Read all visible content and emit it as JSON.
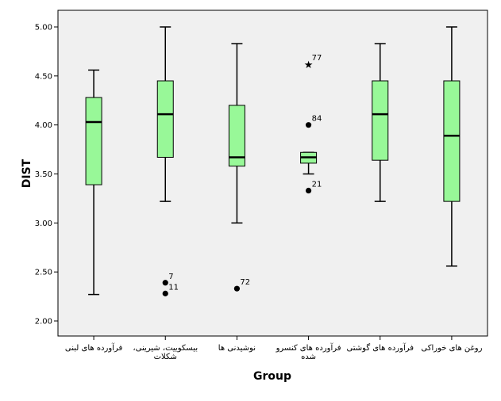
{
  "chart_data": {
    "type": "boxplot",
    "xlabel": "Group",
    "ylabel": "DIST",
    "ylim": [
      1.9,
      5.2
    ],
    "yticks": [
      2.0,
      2.5,
      3.0,
      3.5,
      4.0,
      4.5,
      5.0
    ],
    "ytick_labels": [
      "2.00",
      "2.50",
      "3.00",
      "3.50",
      "4.00",
      "4.50",
      "5.00"
    ],
    "grid": false,
    "colors": {
      "box_fill": "#98f898",
      "plot_bg": "#f0f0f0",
      "stroke": "#000000"
    },
    "categories": [
      {
        "label": [
          "فرآورده های لبنی"
        ],
        "min": 2.27,
        "q1": 3.39,
        "median": 4.03,
        "q3": 4.28,
        "max": 4.56,
        "outliers": []
      },
      {
        "label": [
          "بیسکوییت، شیرینی،",
          "شکلات"
        ],
        "min": 3.22,
        "q1": 3.67,
        "median": 4.11,
        "q3": 4.45,
        "max": 5.0,
        "outliers": [
          {
            "value": 2.39,
            "label": "7",
            "marker": "circle"
          },
          {
            "value": 2.28,
            "label": "11",
            "marker": "circle"
          }
        ]
      },
      {
        "label": [
          "نوشیدنی ها"
        ],
        "min": 3.0,
        "q1": 3.58,
        "median": 3.67,
        "q3": 4.2,
        "max": 4.83,
        "outliers": [
          {
            "value": 2.33,
            "label": "72",
            "marker": "circle"
          }
        ]
      },
      {
        "label": [
          "فرآورده های کنسرو",
          "شده"
        ],
        "min": 3.5,
        "q1": 3.61,
        "median": 3.67,
        "q3": 3.72,
        "max": 3.72,
        "outliers": [
          {
            "value": 4.62,
            "label": "77",
            "marker": "star"
          },
          {
            "value": 4.0,
            "label": "84",
            "marker": "circle"
          },
          {
            "value": 3.33,
            "label": "21",
            "marker": "circle"
          }
        ]
      },
      {
        "label": [
          "فرآورده های گوشتی"
        ],
        "min": 3.22,
        "q1": 3.64,
        "median": 4.11,
        "q3": 4.45,
        "max": 4.83,
        "outliers": []
      },
      {
        "label": [
          "روغن های خوراکی"
        ],
        "min": 2.56,
        "q1": 3.22,
        "median": 3.89,
        "q3": 4.45,
        "max": 5.0,
        "outliers": []
      }
    ]
  }
}
